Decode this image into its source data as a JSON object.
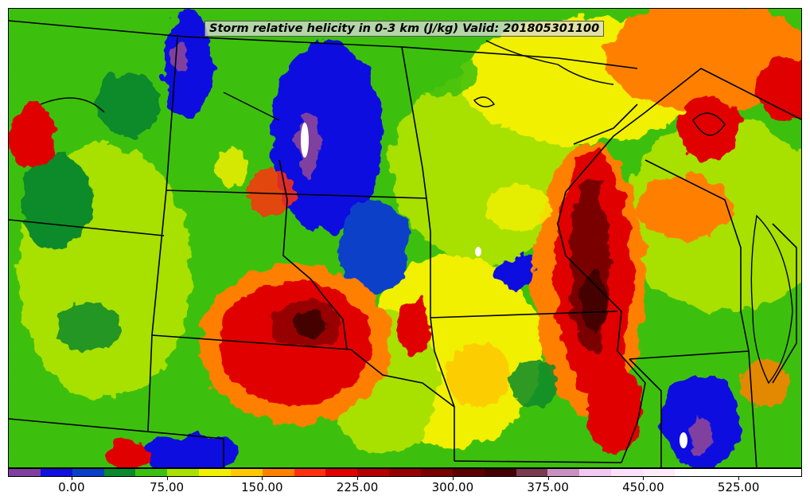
{
  "map": {
    "title": "Storm relative helicity in 0-3 km (J/kg) Valid: 201805301100",
    "variable": "Storm relative helicity in 0-3 km",
    "units": "J/kg",
    "valid_time": "201805301100",
    "region": "Northern/Central Plains and Upper Midwest, USA",
    "features": [
      "state-boundaries",
      "coastlines",
      "lakes",
      "filled-contours"
    ]
  },
  "colorbar": {
    "tick_labels": [
      "0.00",
      "75.00",
      "150.00",
      "225.00",
      "300.00",
      "375.00",
      "450.00",
      "525.00"
    ],
    "min": -50,
    "max": 575,
    "interval": 25,
    "colors": [
      "#7f3fa0",
      "#1010e0",
      "#0a40c8",
      "#0a8a2a",
      "#3cc010",
      "#a8e000",
      "#f0f000",
      "#ffc800",
      "#ff8000",
      "#ff3010",
      "#e00000",
      "#b40000",
      "#960000",
      "#7a0000",
      "#5c0000",
      "#440000",
      "#7a3a50",
      "#c890c0",
      "#f0c8f0",
      "#fae0f8",
      "#fcecfa",
      "#ffffff"
    ]
  },
  "palette": {
    "purple": "#7f3fa0",
    "blue": "#1010e0",
    "dark_green": "#0a8a2a",
    "green": "#3cc010",
    "lime": "#a8e000",
    "yellow": "#f0f000",
    "orange": "#ff8000",
    "red": "#e00000",
    "dark_red": "#7a0000",
    "pink": "#f0c8f0"
  }
}
